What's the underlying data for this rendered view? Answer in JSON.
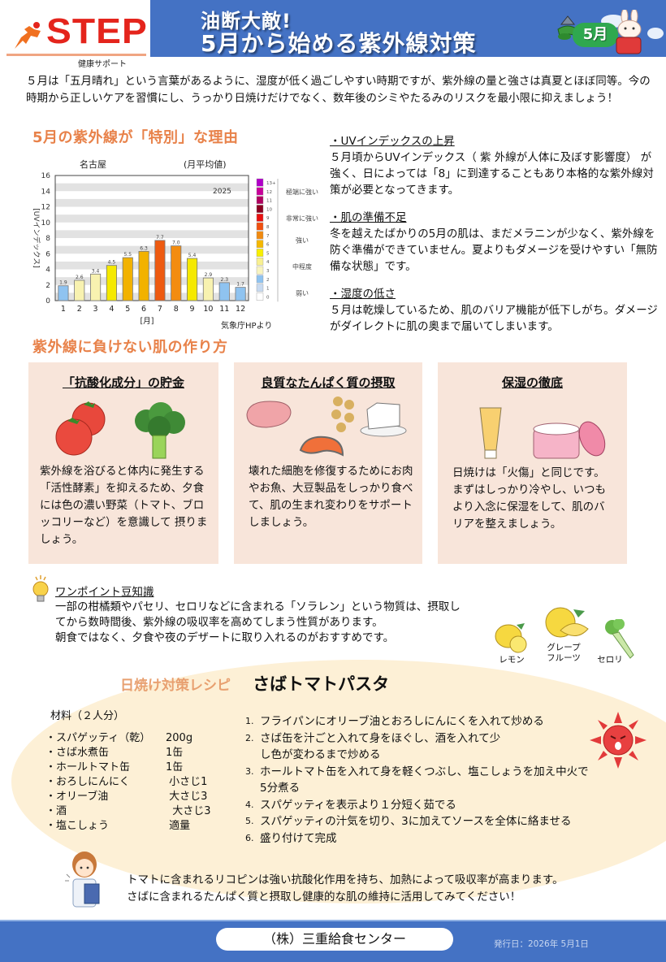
{
  "header": {
    "logo_text": "STEP",
    "logo_sub": "健康サポート",
    "title_line1": "油断大敵!",
    "title_line2": "5月から始める紫外線対策",
    "month_badge": "5月"
  },
  "intro": "５月は「五月晴れ」という言葉があるように、湿度が低く過ごしやすい時期ですが、紫外線の量と強さは真夏とほぼ同等。今の時期から正しいケアを習慣にし、うっかり日焼けだけでなく、数年後のシミやたるみのリスクを最小限に抑えましょう！",
  "section1": {
    "heading": "5月の紫外線が「特別」な理由"
  },
  "chart_data": {
    "type": "bar",
    "title": "名古屋",
    "subtitle": "(月平均値)",
    "annotation_year": "2025",
    "categories": [
      "1",
      "2",
      "3",
      "4",
      "5",
      "6",
      "7",
      "8",
      "9",
      "10",
      "11",
      "12"
    ],
    "values": [
      1.9,
      2.6,
      3.4,
      4.5,
      5.5,
      6.3,
      7.7,
      7.0,
      5.4,
      2.9,
      2.3,
      1.7
    ],
    "value_labels": [
      "1.9",
      "2.6",
      "3.4",
      "4.5",
      "5.5",
      "6.3",
      "7.7",
      "7.0",
      "5.4",
      "2.9",
      "2.3",
      "1.7"
    ],
    "bar_colors": [
      "#8fc3f0",
      "#f8f2b0",
      "#f8f2b0",
      "#f5e900",
      "#f2b200",
      "#f2b200",
      "#ee5a10",
      "#f38c10",
      "#f5e900",
      "#f8f2b0",
      "#8fc3f0",
      "#8fc3f0"
    ],
    "xlabel": "[月]",
    "ylabel": "[UVインデックス]",
    "ylim": [
      0,
      16
    ],
    "yticks": [
      0,
      2,
      4,
      6,
      8,
      10,
      12,
      14,
      16
    ],
    "grid": "horizontal alternating bands",
    "source": "気象庁HPより",
    "legend": {
      "scale": [
        {
          "level": "13+",
          "color": "#b000c8"
        },
        {
          "level": "12",
          "color": "#c8009a"
        },
        {
          "level": "11",
          "color": "#b00060"
        },
        {
          "level": "10",
          "color": "#8a0020"
        },
        {
          "level": "9",
          "color": "#e81010"
        },
        {
          "level": "8",
          "color": "#f05010"
        },
        {
          "level": "7",
          "color": "#f08a10"
        },
        {
          "level": "6",
          "color": "#f5b800"
        },
        {
          "level": "5",
          "color": "#f8ef00"
        },
        {
          "level": "4",
          "color": "#f8f090"
        },
        {
          "level": "3",
          "color": "#f8f4c0"
        },
        {
          "level": "2",
          "color": "#8fc3f0"
        },
        {
          "level": "1",
          "color": "#c8daf0"
        },
        {
          "level": "0",
          "color": "#ffffff"
        }
      ],
      "categories": [
        "極端に強い",
        "非常に強い",
        "強い",
        "中程度",
        "弱い"
      ]
    }
  },
  "reasons": [
    {
      "title": "・UVインデックスの上昇",
      "body": " ５月頃からUVインデックス（ 紫 外線が人体に及ぼす影響度） が強く、日によっては「8」に到達することもあり本格的な紫外線対策が必要となってきます。"
    },
    {
      "title": " ・肌の準備不足",
      "body": "  冬を越えたばかりの5月の肌は、まだメラニンが少なく、紫外線を防ぐ準備ができていません。夏よりもダメージを受けやすい「無防備な状態」です。"
    },
    {
      "title": "・湿度の低さ",
      "body": " ５月は乾燥しているため、肌のバリア機能が低下しがち。ダメージがダイレクトに肌の奥まで届いてしまいます。"
    }
  ],
  "section2": {
    "heading": "紫外線に負けない肌の作り方"
  },
  "cards": [
    {
      "title": "「抗酸化成分」の貯金",
      "body": "紫外線を浴びると体内に発生する「活性酵素」を抑えるため、夕食には色の濃い野菜（トマト、ブロッコリーなど）を意識して 摂りましょう。",
      "images": [
        "tomato",
        "broccoli"
      ]
    },
    {
      "title": "良質なたんぱく質の摂取",
      "body": "壊れた細胞を修復するためにお肉やお魚、大豆製品をしっかり食べて、肌の生まれ変わりをサポートしましょう。",
      "images": [
        "meat",
        "soybeans",
        "tofu",
        "salmon"
      ]
    },
    {
      "title": "保湿の徹底",
      "body": "日焼けは「火傷」と同じです。まずはしっかり冷やし、いつもより入念に保湿をして、肌のバリアを整えましょう。",
      "images": [
        "lotion-tube",
        "cream-jar"
      ]
    }
  ],
  "tip": {
    "title": "ワンポイント豆知識",
    "lines": [
      "一部の柑橘類やパセリ、セロリなどに含まれる「ソラレン」という物質は、摂取し",
      "てから数時間後、紫外線の吸収率を高めてしまう性質があります。",
      "朝食ではなく、夕食や夜のデザートに取り入れるのがおすすめです。"
    ],
    "fruits": [
      "レモン",
      "グレープ\nフルーツ",
      "セロリ"
    ]
  },
  "recipe": {
    "kicker": "日焼け対策レシピ",
    "name": "さばトマトパスタ",
    "ingredients_title": "材料（２人分）",
    "ingredients": [
      {
        "name": "・スパゲッティ（乾）",
        "qty": "200g"
      },
      {
        "name": "・さば水煮缶",
        "qty": "1缶"
      },
      {
        "name": "・ホールトマト缶",
        "qty": "1缶"
      },
      {
        "name": "・おろしにんにく",
        "qty": " 小さじ1"
      },
      {
        "name": "・オリーブ油",
        "qty": " 大さじ3"
      },
      {
        "name": "・酒",
        "qty": "  大さじ3"
      },
      {
        "name": "・塩こしょう",
        "qty": " 適量"
      }
    ],
    "steps": [
      {
        "num": "1.",
        "text": "フライパンにオリーブ油とおろしにんにくを入れて炒める"
      },
      {
        "num": "2.",
        "text": "さば缶を汁ごと入れて身をほぐし、酒を入れて少し色が変わるまで炒める"
      },
      {
        "num": "3.",
        "text": "ホールトマト缶を入れて身を軽くつぶし、塩こしょうを加え中火で5分煮る"
      },
      {
        "num": "4.",
        "text": "スパゲッティを表示より１分短く茹でる"
      },
      {
        "num": "5.",
        "text": "スパゲッティの汁気を切り、3に加えてソースを全体に絡ませる"
      },
      {
        "num": "6.",
        "text": "盛り付けて完成"
      }
    ],
    "note_lines": [
      "トマトに含まれるリコピンは強い抗酸化作用を持ち、加熱によって吸収率が高まります。",
      "さばに含まれるたんぱく質と摂取し健康的な肌の維持に活用してみてください！"
    ]
  },
  "footer": {
    "company": "（株）三重給食センター",
    "issued": "発行日：2026年 5月1日"
  },
  "colors": {
    "brand_blue": "#4472c4",
    "accent_orange": "#e8824a",
    "logo_red": "#e4241c",
    "card_bg": "#f8e5da",
    "recipe_bg": "#fdf0d6"
  }
}
